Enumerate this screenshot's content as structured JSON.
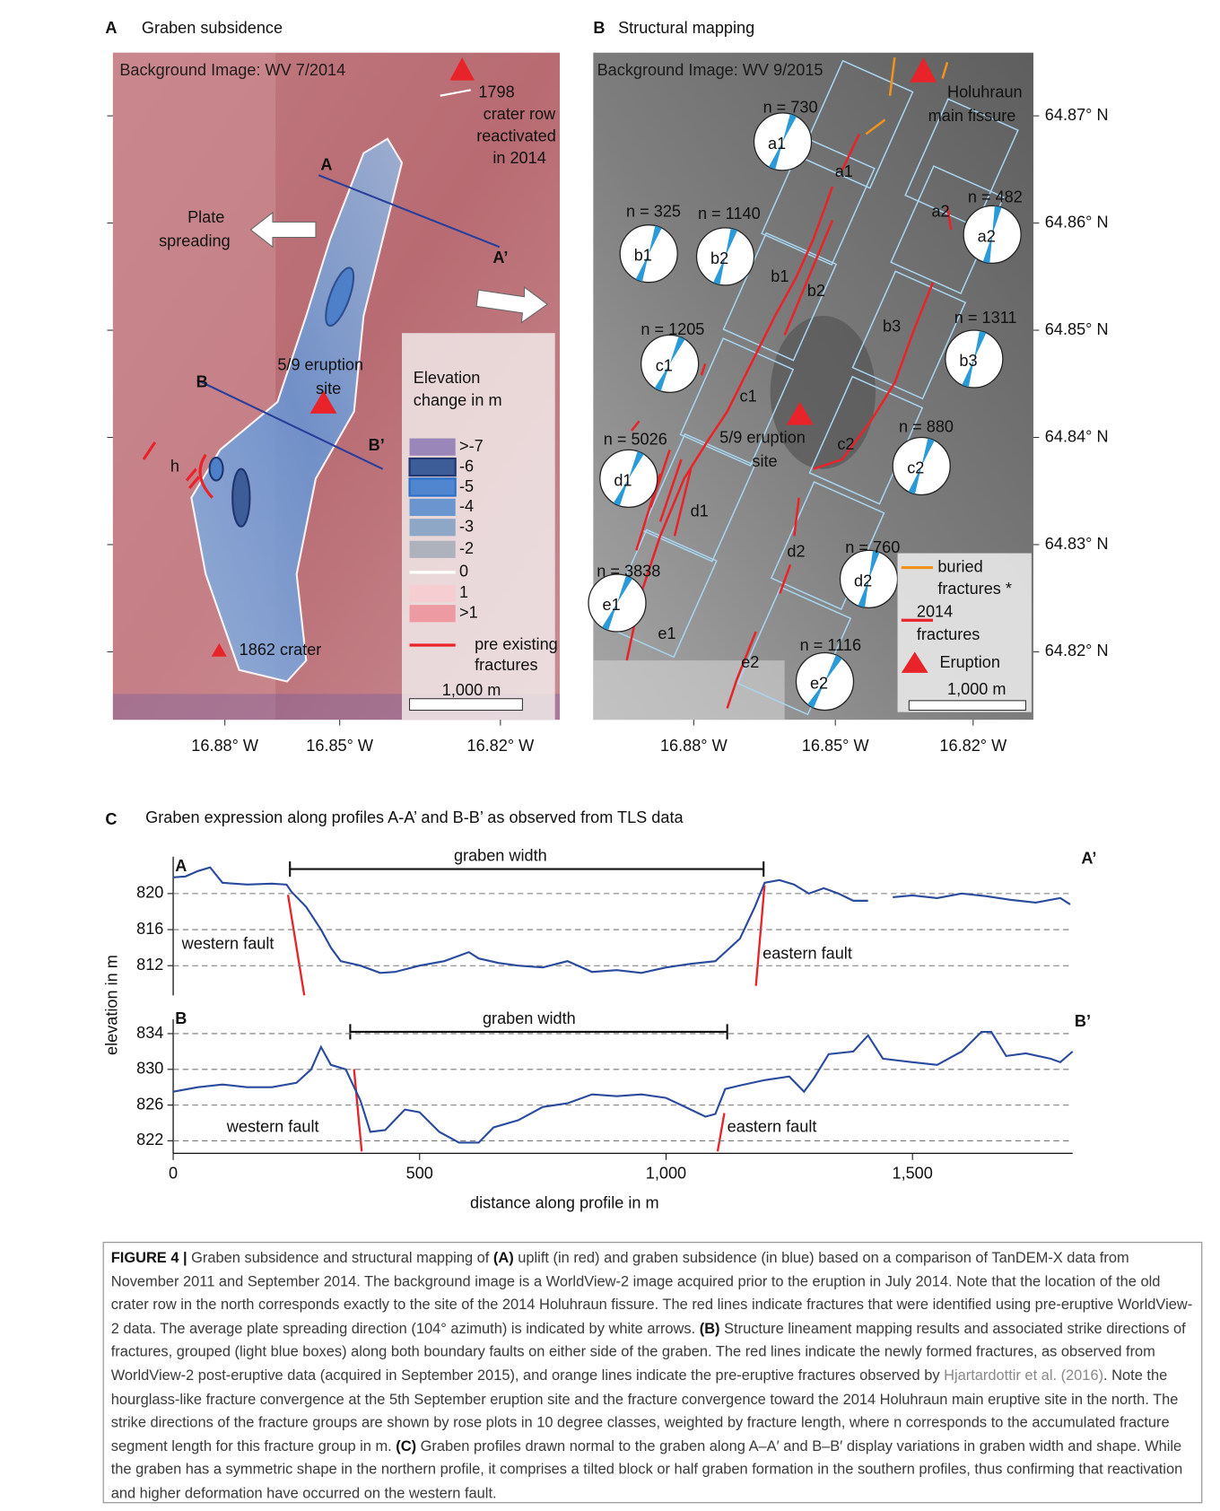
{
  "panel_a": {
    "letter": "A",
    "title": "Graben subsidence",
    "background": "Background Image: WV 7/2014",
    "crater_1798": [
      "1798",
      "crater row",
      "reactivated",
      "in 2014"
    ],
    "profile_labels": [
      "A",
      "A’",
      "B",
      "B’"
    ],
    "spreading": [
      "Plate",
      "spreading"
    ],
    "eruption": [
      "5/9 eruption",
      "site"
    ],
    "h": "h",
    "crater_1862": "1862 crater",
    "legend_title": [
      "Elevation",
      "change in m"
    ],
    "legend": [
      {
        "label": ">-7",
        "color": "#9a86b8"
      },
      {
        "label": "-6",
        "color": "#3d5d98"
      },
      {
        "label": "-5",
        "color": "#4f86cf"
      },
      {
        "label": "-4",
        "color": "#6a95cf"
      },
      {
        "label": "-3",
        "color": "#8ea7c6"
      },
      {
        "label": "-2",
        "color": "#adb2bd"
      },
      {
        "label": "0",
        "color": "#ffffff"
      },
      {
        "label": "1",
        "color": "#f6cdd1"
      },
      {
        "label": ">1",
        "color": "#ee9aa2"
      },
      {
        "label": "pre existing",
        "color": "#e8242a"
      }
    ],
    "legend_last": "fractures",
    "scale": "1,000 m",
    "lon_labels": [
      "16.88° W",
      "16.85° W",
      "16.82° W"
    ]
  },
  "panel_b": {
    "letter": "B",
    "title": "Structural mapping",
    "background": "Background Image: WV 9/2015",
    "fissure": [
      "Holuhraun",
      "main fissure"
    ],
    "eruption": [
      "5/9 eruption",
      "site"
    ],
    "roses": [
      {
        "label": "a1",
        "n": "n = 730"
      },
      {
        "label": "a2",
        "n": "n = 482"
      },
      {
        "label": "b1",
        "n": "n = 325"
      },
      {
        "label": "b2",
        "n": "n = 1140"
      },
      {
        "label": "b3",
        "n": "n = 1311"
      },
      {
        "label": "c1",
        "n": "n = 1205"
      },
      {
        "label": "c2",
        "n": "n = 880"
      },
      {
        "label": "d1",
        "n": "n = 5026"
      },
      {
        "label": "d2",
        "n": "n = 760"
      },
      {
        "label": "e1",
        "n": "n = 3838"
      },
      {
        "label": "e2",
        "n": "n = 1116"
      }
    ],
    "legend": [
      {
        "label": [
          "buried",
          "fractures *"
        ],
        "color": "#f0921e"
      },
      {
        "label": [
          "2014",
          "fractures"
        ],
        "color": "#e8242a"
      },
      {
        "label": [
          "Eruption"
        ],
        "color": "#e8242a"
      }
    ],
    "scale": "1,000 m",
    "lat_labels": [
      "64.87° N",
      "64.86° N",
      "64.85° N",
      "64.84° N",
      "64.83° N",
      "64.82° N"
    ],
    "lon_labels": [
      "16.88° W",
      "16.85° W",
      "16.82° W"
    ]
  },
  "panel_c": {
    "letter": "C",
    "title": "Graben expression along profiles A-A’ and B-B’ as observed from TLS data",
    "ylabel": "elevation in m",
    "xlabel": "distance along profile in m"
  },
  "chart_data": [
    {
      "type": "line",
      "color": "#2a4a9c",
      "grid": true,
      "annotations": {
        "start": "A",
        "end": "A’",
        "width": "graben width",
        "west": "western fault",
        "east": "eastern fault"
      },
      "x": [
        0,
        25,
        50,
        75,
        100,
        150,
        200,
        230,
        240,
        270,
        300,
        320,
        340,
        380,
        420,
        450,
        500,
        550,
        600,
        620,
        660,
        700,
        750,
        800,
        850,
        900,
        950,
        1000,
        1050,
        1100,
        1150,
        1180,
        1200,
        1230,
        1260,
        1290,
        1320,
        1350,
        1380,
        1410,
        1430,
        1460,
        1500,
        1550,
        1600,
        1650,
        1700,
        1750,
        1800,
        1820
      ],
      "values": [
        821.8,
        821.9,
        822.5,
        822.9,
        821.2,
        821,
        821.1,
        821,
        820.2,
        818.5,
        816,
        814,
        812.5,
        812,
        811.2,
        811.3,
        812,
        812.5,
        813.5,
        812.8,
        812.3,
        812,
        811.8,
        812.5,
        811.3,
        811.5,
        811.2,
        811.8,
        812.2,
        812.5,
        815,
        818.5,
        821.2,
        821.5,
        821,
        820,
        820.6,
        820,
        819.2,
        819.2,
        null,
        819.6,
        819.8,
        819.5,
        820,
        819.7,
        819.3,
        819,
        819.5,
        818.8
      ],
      "xlim": [
        0,
        1825
      ],
      "ylim": [
        808.7,
        824.1
      ],
      "yticks": [
        812,
        816,
        820
      ]
    },
    {
      "type": "line",
      "color": "#2a4a9c",
      "grid": true,
      "annotations": {
        "start": "B",
        "end": "B’",
        "width": "graben width",
        "west": "western fault",
        "east": "eastern fault"
      },
      "x": [
        0,
        50,
        100,
        150,
        200,
        250,
        280,
        300,
        320,
        350,
        380,
        400,
        430,
        470,
        500,
        540,
        580,
        620,
        650,
        700,
        750,
        800,
        850,
        900,
        950,
        1000,
        1050,
        1080,
        1100,
        1120,
        1150,
        1200,
        1250,
        1280,
        1300,
        1330,
        1380,
        1410,
        1440,
        1500,
        1550,
        1600,
        1640,
        1660,
        1690,
        1730,
        1780,
        1800,
        1825
      ],
      "values": [
        827.5,
        828,
        828.3,
        828,
        828,
        828.5,
        830,
        832.5,
        830.5,
        830,
        826.5,
        823,
        823.2,
        825.5,
        825.2,
        823,
        821.8,
        821.8,
        823.5,
        824.3,
        825.8,
        826.2,
        827.2,
        827,
        827.2,
        826.8,
        825.5,
        824.7,
        825,
        827.8,
        828.2,
        828.8,
        829.2,
        827.5,
        829,
        831.7,
        832,
        833.8,
        831.2,
        830.8,
        830.5,
        832,
        834.2,
        834.2,
        831.5,
        831.8,
        831.2,
        830.8,
        832
      ],
      "xlim": [
        0,
        1825
      ],
      "ylim": [
        820.6,
        835.6
      ],
      "yticks": [
        822,
        826,
        830,
        834
      ],
      "xticks": [
        0,
        500,
        {
          "value": 1000,
          "label": "1,000"
        },
        {
          "value": 1500,
          "label": "1,500"
        }
      ]
    }
  ],
  "caption": [
    "FIGURE 4 |",
    " Graben subsidence and structural mapping of ",
    "(A)",
    " uplift (in red) and graben subsidence (in blue) based on a comparison of TanDEM-X data from November 2011 and September 2014. The background image is a WorldView-2 image acquired prior to the eruption in July 2014. Note that the location of the old crater row in the north corresponds exactly to the site of the 2014 Holuhraun fissure. The red lines indicate fractures that were identified using pre-eruptive WorldView-2 data. The average plate spreading direction (104° azimuth) is indicated by white arrows. ",
    "(B)",
    " Structure lineament mapping results and associated strike directions of fractures, grouped (light blue boxes) along both boundary faults on either side of the graben. The red lines indicate the newly formed fractures, as observed from WorldView-2 post-eruptive data (acquired in September 2015), and orange lines indicate the pre-eruptive fractures observed by ",
    "Hjartardottir et al. (2016)",
    ". Note the hourglass-like fracture convergence at the 5th September eruption site and the fracture convergence toward the 2014 Holuhraun main eruptive site in the north. The strike directions of the fracture groups are shown by rose plots in 10 degree classes, weighted by fracture length, where n corresponds to the accumulated fracture segment length for this fracture group in m. ",
    "(C)",
    " Graben profiles drawn normal to the graben along A–A′ and B–B′ display variations in graben width and shape. While the graben has a symmetric shape in the northern profile, it comprises a tilted block or half graben formation in the southern profiles, thus confirming that reactivation and higher deformation have occurred on the western fault."
  ]
}
